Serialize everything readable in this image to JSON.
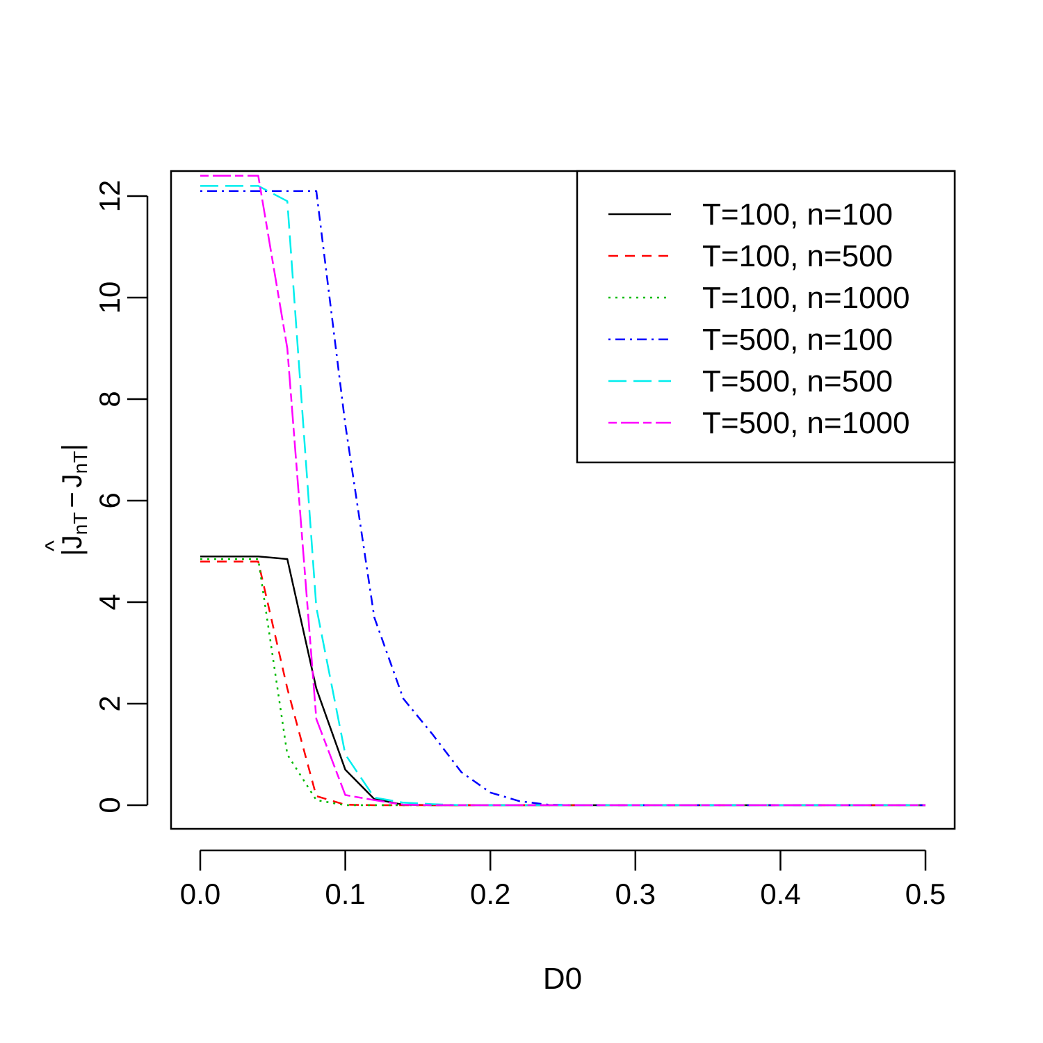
{
  "chart_data": {
    "type": "line",
    "title": "",
    "xlabel": "D0",
    "ylabel": {
      "prefix": "|",
      "hat_symbol": "^",
      "term1": "J",
      "sub1": "nT",
      "operator": "−",
      "term2": "J",
      "sub2": "nT",
      "suffix": "|"
    },
    "xlim": [
      0,
      0.5
    ],
    "ylim": [
      0,
      12.4
    ],
    "x_ticks": [
      "0.0",
      "0.1",
      "0.2",
      "0.3",
      "0.4",
      "0.5"
    ],
    "y_ticks": [
      "0",
      "2",
      "4",
      "6",
      "8",
      "10",
      "12"
    ],
    "grid": false,
    "legend_position": "top-right",
    "x": [
      0,
      0.02,
      0.04,
      0.06,
      0.08,
      0.1,
      0.12,
      0.14,
      0.16,
      0.18,
      0.2,
      0.22,
      0.24,
      0.26,
      0.3,
      0.4,
      0.5
    ],
    "series": [
      {
        "name": "T=100, n=100",
        "color": "#000000",
        "dash": "solid",
        "values": [
          4.9,
          4.9,
          4.9,
          4.85,
          2.3,
          0.7,
          0.12,
          0.01,
          0,
          0,
          0,
          0,
          0,
          0,
          0,
          0,
          0
        ]
      },
      {
        "name": "T=100, n=500",
        "color": "#ff0000",
        "dash": "dashed",
        "values": [
          4.8,
          4.8,
          4.8,
          2.3,
          0.18,
          0.01,
          0,
          0,
          0,
          0,
          0,
          0,
          0,
          0,
          0,
          0,
          0
        ]
      },
      {
        "name": "T=100, n=1000",
        "color": "#00bb00",
        "dash": "dotted",
        "values": [
          4.85,
          4.85,
          4.85,
          1.0,
          0.1,
          0.0,
          0,
          0,
          0,
          0,
          0,
          0,
          0,
          0,
          0,
          0,
          0
        ]
      },
      {
        "name": "T=500, n=100",
        "color": "#0000ff",
        "dash": "dotdash",
        "values": [
          12.1,
          12.1,
          12.1,
          12.1,
          12.1,
          7.5,
          3.7,
          2.1,
          1.4,
          0.65,
          0.25,
          0.08,
          0.01,
          0,
          0,
          0,
          0
        ]
      },
      {
        "name": "T=500, n=500",
        "color": "#00eeee",
        "dash": "longdash",
        "values": [
          12.2,
          12.2,
          12.2,
          11.9,
          3.9,
          1.0,
          0.15,
          0.05,
          0.02,
          0,
          0,
          0,
          0,
          0,
          0,
          0,
          0
        ]
      },
      {
        "name": "T=500, n=1000",
        "color": "#ff00ff",
        "dash": "twodash",
        "values": [
          12.4,
          12.4,
          12.4,
          9.0,
          1.7,
          0.2,
          0.1,
          0.01,
          0,
          0,
          0,
          0,
          0,
          0,
          0,
          0,
          0
        ]
      }
    ]
  }
}
